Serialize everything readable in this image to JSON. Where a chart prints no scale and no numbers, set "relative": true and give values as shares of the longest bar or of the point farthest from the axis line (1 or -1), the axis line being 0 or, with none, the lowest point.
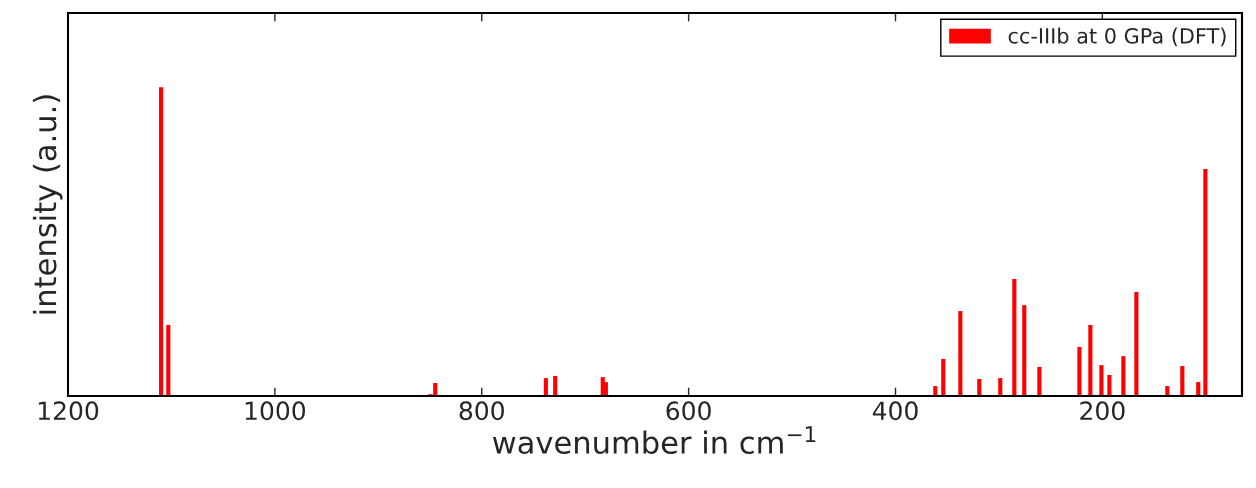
{
  "chart_data": {
    "type": "bar",
    "relative": true,
    "xlabel": "wavenumber in cm$^{−1}$",
    "ylabel": "intensity (a.u.)",
    "xlim": [
      1200,
      65
    ],
    "xticks": [
      1200,
      1000,
      800,
      600,
      400,
      200
    ],
    "tick_labels": "x",
    "legend": "top right",
    "grid": false,
    "series": [
      {
        "name": "cc-IIIb at 0 GPa (DFT)",
        "color": "#ff0000",
        "x": [
          1110,
          1103,
          849.5,
          845,
          738,
          729,
          683,
          680,
          361.5,
          353.8,
          337.3,
          319,
          298.7,
          285.1,
          275.5,
          260.9,
          222.2,
          211.6,
          200.9,
          193.2,
          179.7,
          167.1,
          137.2,
          122.7,
          107.3,
          100.4
        ],
        "values": [
          1.0,
          0.23,
          0.006,
          0.042,
          0.058,
          0.065,
          0.061,
          0.045,
          0.032,
          0.12,
          0.275,
          0.055,
          0.058,
          0.379,
          0.294,
          0.094,
          0.159,
          0.23,
          0.1,
          0.068,
          0.129,
          0.337,
          0.032,
          0.097,
          0.045,
          0.735
        ]
      }
    ]
  }
}
